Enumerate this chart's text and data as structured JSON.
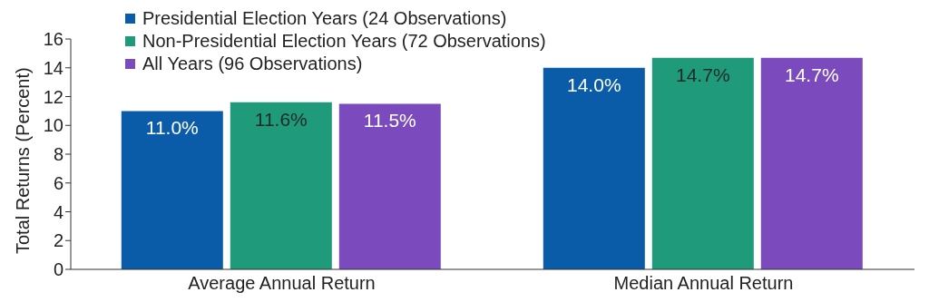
{
  "chart_data": {
    "type": "bar",
    "categories": [
      "Average Annual Return",
      "Median Annual Return"
    ],
    "series": [
      {
        "name": "Presidential Election Years (24 Observations)",
        "color": "#0a5ca8",
        "values": [
          11.0,
          14.0
        ],
        "value_labels": [
          "11.0%",
          "14.0%"
        ]
      },
      {
        "name": "Non-Presidential Election Years (72 Observations)",
        "color": "#1f9a7a",
        "values": [
          11.6,
          14.7
        ],
        "value_labels": [
          "11.6%",
          "14.7%"
        ]
      },
      {
        "name": "All Years (96 Observations)",
        "color": "#7b4bbd",
        "values": [
          11.5,
          14.7
        ],
        "value_labels": [
          "11.5%",
          "14.7%"
        ]
      }
    ],
    "ylabel": "Total Returns (Percent)",
    "ylim": [
      0,
      16
    ],
    "yticks": [
      0,
      2,
      4,
      6,
      8,
      10,
      12,
      14,
      16
    ],
    "grid": false,
    "legend": "top left"
  }
}
